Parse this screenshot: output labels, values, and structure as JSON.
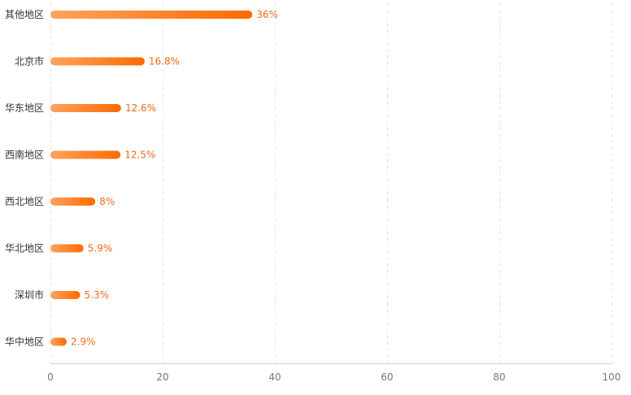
{
  "chart_data": {
    "type": "bar",
    "orientation": "horizontal",
    "categories": [
      "其他地区",
      "北京市",
      "华东地区",
      "西南地区",
      "西北地区",
      "华北地区",
      "深圳市",
      "华中地区"
    ],
    "values": [
      36,
      16.8,
      12.6,
      12.5,
      8,
      5.9,
      5.3,
      2.9
    ],
    "value_labels": [
      "36%",
      "16.8%",
      "12.6%",
      "12.5%",
      "8%",
      "5.9%",
      "5.3%",
      "2.9%"
    ],
    "xlim": [
      0,
      100
    ],
    "x_ticks": [
      0,
      20,
      40,
      60,
      80,
      100
    ],
    "x_tick_labels": [
      "0",
      "20",
      "40",
      "60",
      "80",
      "100"
    ],
    "grid": true,
    "legend": "none",
    "colors": {
      "bar_start": "#ffa35c",
      "bar_end": "#ff6a00",
      "value_label": "#ee6b1a"
    }
  }
}
